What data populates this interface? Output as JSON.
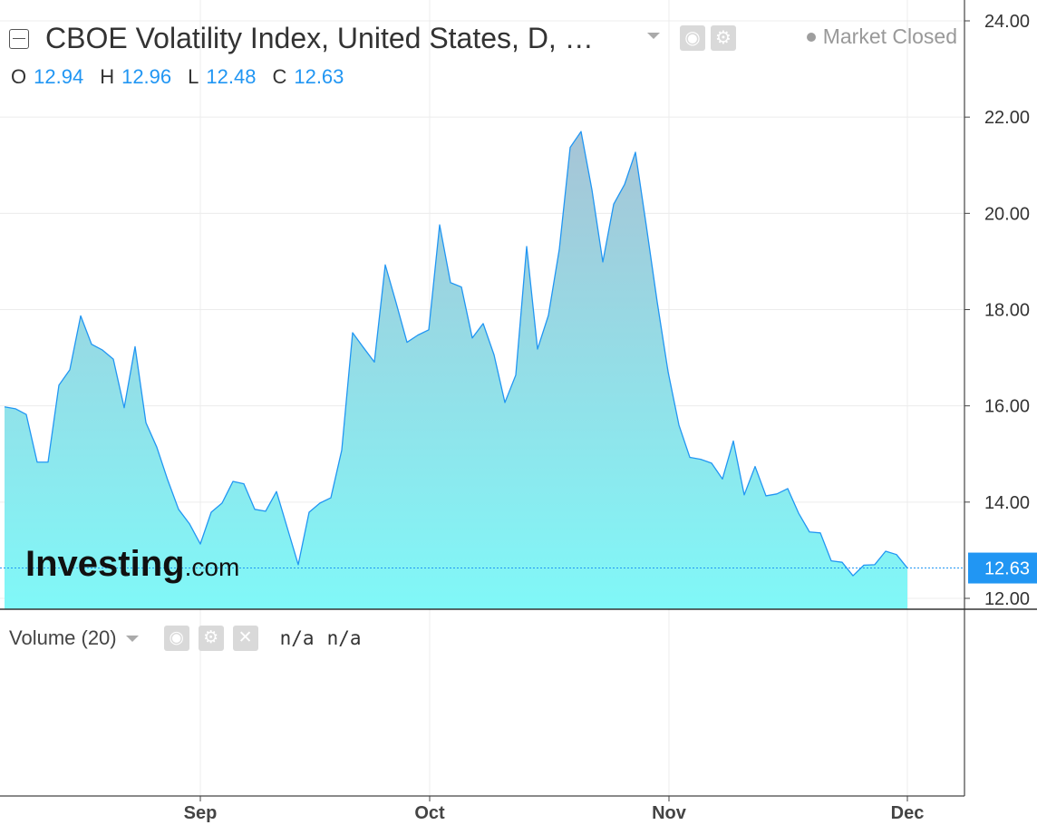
{
  "header": {
    "title": "CBOE Volatility Index, United States, D, …",
    "market_status": "Market Closed",
    "ohlc": [
      {
        "key": "O",
        "value": "12.94"
      },
      {
        "key": "H",
        "value": "12.96"
      },
      {
        "key": "L",
        "value": "12.48"
      },
      {
        "key": "C",
        "value": "12.63"
      }
    ]
  },
  "volume_panel": {
    "label": "Volume (20)",
    "value1": "n/a",
    "value2": "n/a"
  },
  "watermark": {
    "brand": "Investing",
    "suffix": ".com"
  },
  "icons": [
    "collapse-icon",
    "chevron-down-icon",
    "eye-icon",
    "gear-icon",
    "close-icon"
  ],
  "colors": {
    "line": "#2196f3",
    "fill_top": "#a7c4d6",
    "fill_bottom": "#80f8f8",
    "price_label_bg": "#2196f3"
  },
  "chart_data": {
    "type": "area",
    "series": [
      {
        "values": [
          15.98,
          15.94,
          15.82,
          14.83,
          14.83,
          16.43,
          16.75,
          17.87,
          17.28,
          17.16,
          16.97,
          15.96,
          17.23,
          15.65,
          15.14,
          14.46,
          13.85,
          13.55,
          13.13,
          13.79,
          13.98,
          14.43,
          14.38,
          13.85,
          13.81,
          14.22,
          13.46,
          12.7,
          13.79,
          13.98,
          14.09,
          15.08,
          17.52,
          17.21,
          16.91,
          18.93,
          18.14,
          17.32,
          17.47,
          17.58,
          19.76,
          18.56,
          18.47,
          17.41,
          17.71,
          17.06,
          16.07,
          16.64,
          19.31,
          17.18,
          17.88,
          19.25,
          21.37,
          21.7,
          20.49,
          18.99,
          20.19,
          20.6,
          21.27,
          19.74,
          18.16,
          16.71,
          15.6,
          14.93,
          14.89,
          14.81,
          14.48,
          15.27,
          14.15,
          14.74,
          14.13,
          14.17,
          14.28,
          13.77,
          13.38,
          13.36,
          12.78,
          12.75,
          12.47,
          12.69,
          12.7,
          12.98,
          12.91,
          12.63
        ]
      },
      {
        "name": "Volume (20)",
        "values": []
      }
    ],
    "x_labels": [
      "Sep",
      "Oct",
      "Nov",
      "Dec"
    ],
    "y_ticks": [
      "24.00",
      "22.00",
      "20.00",
      "18.00",
      "16.00",
      "14.00",
      "12.00"
    ],
    "last_value_label": "12.63",
    "ylim": [
      11.8,
      24.3
    ],
    "grid": true
  }
}
